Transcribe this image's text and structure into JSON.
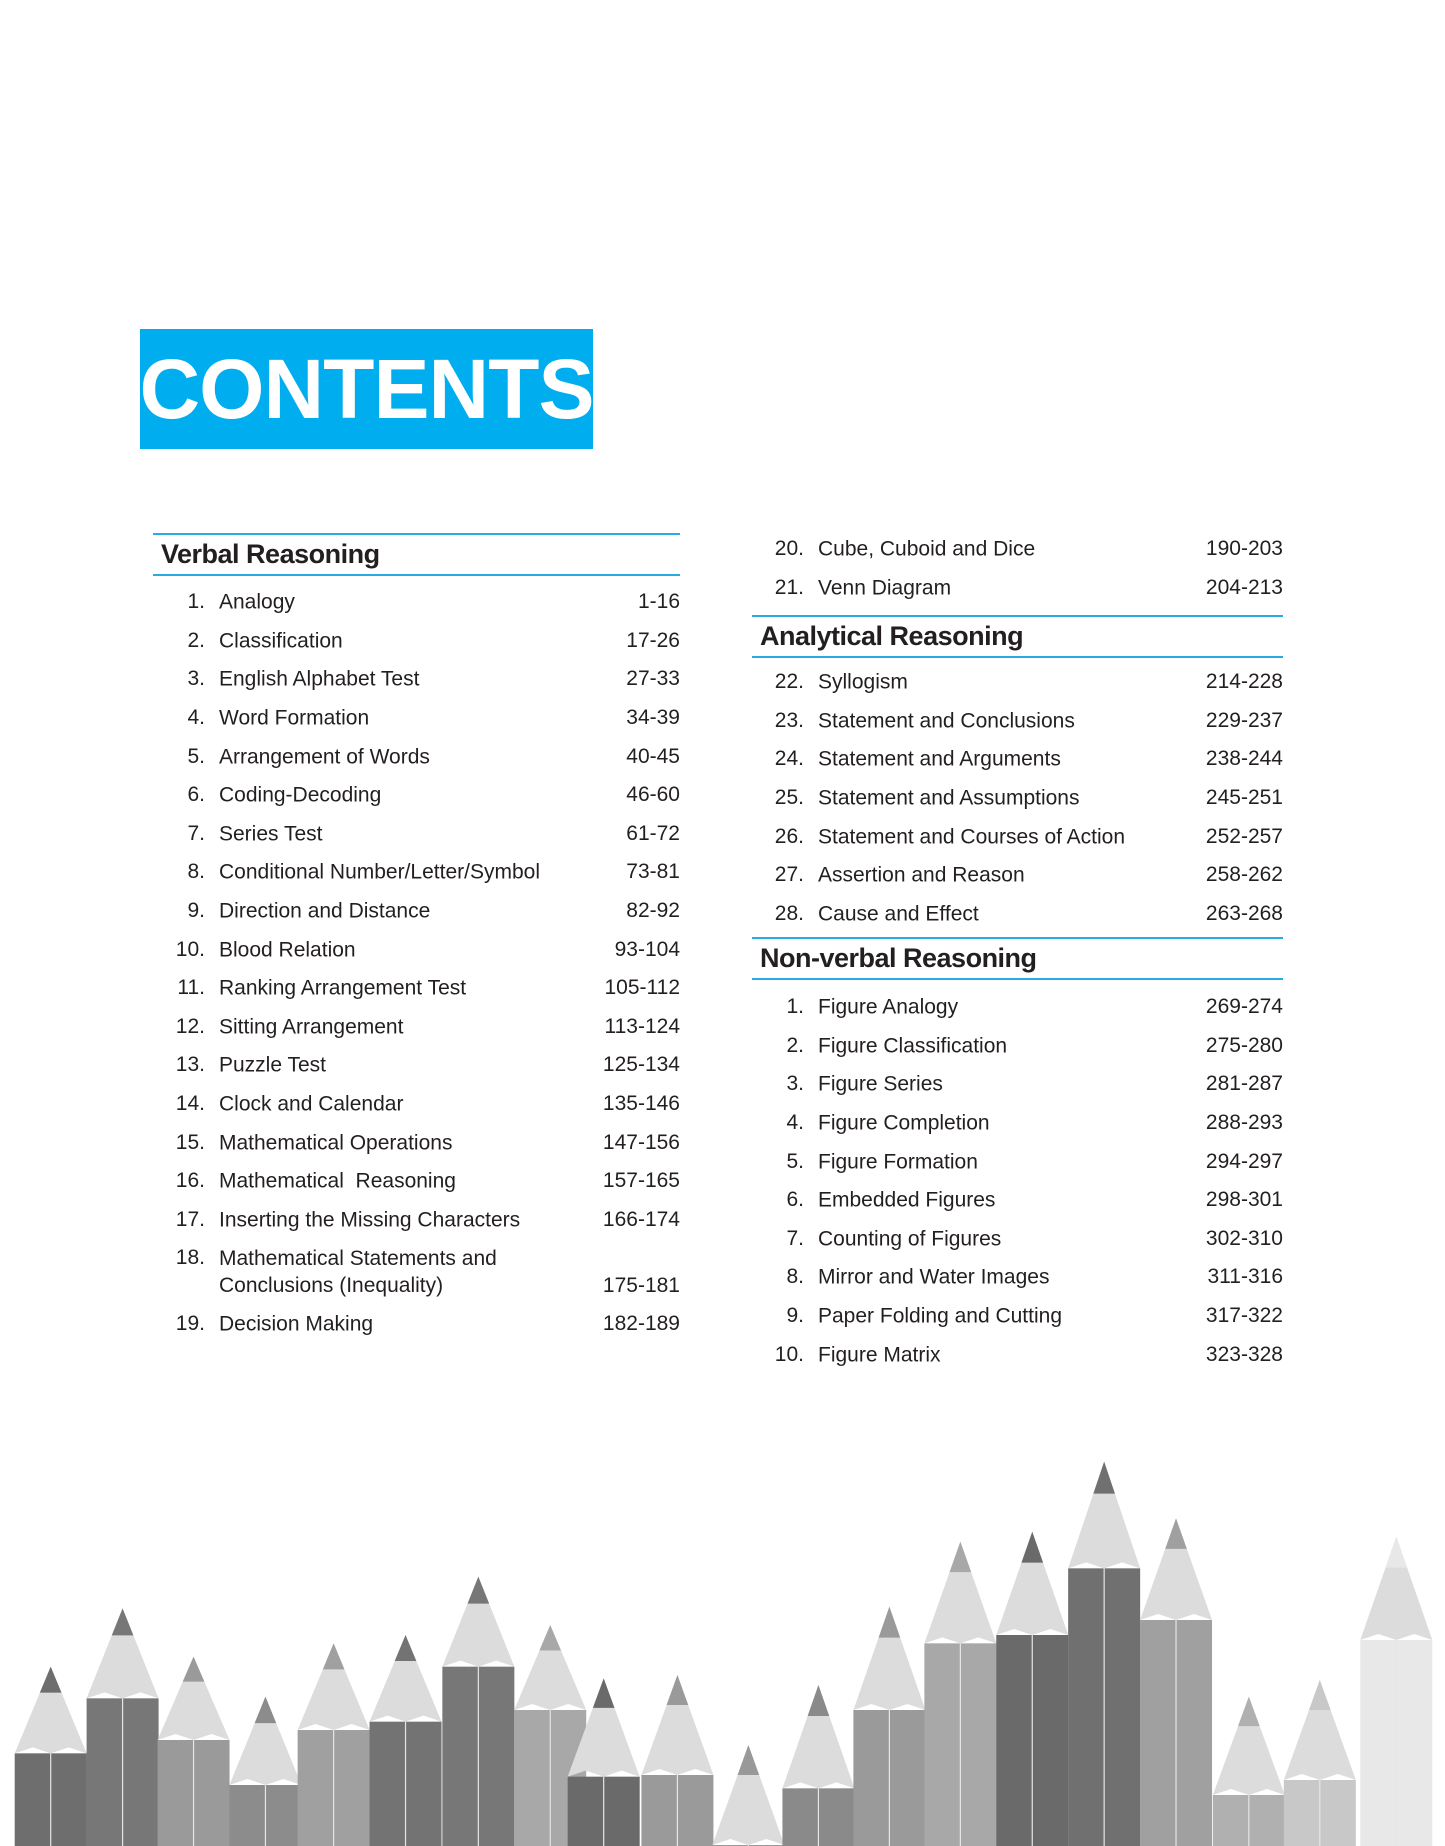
{
  "title": "CONTENTS",
  "accent_color": "#00aeef",
  "rule_color": "#29abe2",
  "left_column": {
    "section": "Verbal Reasoning",
    "items": [
      {
        "num": "1.",
        "label": "Analogy",
        "pages": "1-16"
      },
      {
        "num": "2.",
        "label": "Classification",
        "pages": "17-26"
      },
      {
        "num": "3.",
        "label": "English Alphabet Test",
        "pages": "27-33"
      },
      {
        "num": "4.",
        "label": "Word Formation",
        "pages": "34-39"
      },
      {
        "num": "5.",
        "label": "Arrangement of Words",
        "pages": "40-45"
      },
      {
        "num": "6.",
        "label": "Coding-Decoding",
        "pages": "46-60"
      },
      {
        "num": "7.",
        "label": "Series Test",
        "pages": "61-72"
      },
      {
        "num": "8.",
        "label": "Conditional Number/Letter/Symbol",
        "pages": "73-81"
      },
      {
        "num": "9.",
        "label": "Direction and Distance",
        "pages": "82-92"
      },
      {
        "num": "10.",
        "label": "Blood Relation",
        "pages": "93-104"
      },
      {
        "num": "11.",
        "label": "Ranking Arrangement Test",
        "pages": "105-112"
      },
      {
        "num": "12.",
        "label": "Sitting Arrangement",
        "pages": "113-124"
      },
      {
        "num": "13.",
        "label": "Puzzle Test",
        "pages": "125-134"
      },
      {
        "num": "14.",
        "label": "Clock and Calendar",
        "pages": "135-146"
      },
      {
        "num": "15.",
        "label": "Mathematical Operations",
        "pages": "147-156"
      },
      {
        "num": "16.",
        "label": "Mathematical  Reasoning",
        "pages": "157-165"
      },
      {
        "num": "17.",
        "label": "Inserting the Missing Characters",
        "pages": "166-174"
      },
      {
        "num": "18.",
        "label": "Mathematical Statements and\nConclusions (Inequality)",
        "pages": "175-181"
      },
      {
        "num": "19.",
        "label": "Decision Making",
        "pages": "182-189"
      }
    ]
  },
  "right_column": {
    "continued_items": [
      {
        "num": "20.",
        "label": "Cube, Cuboid and Dice",
        "pages": "190-203"
      },
      {
        "num": "21.",
        "label": "Venn Diagram",
        "pages": "204-213"
      }
    ],
    "analytical": {
      "section": "Analytical Reasoning",
      "items": [
        {
          "num": "22.",
          "label": "Syllogism",
          "pages": "214-228"
        },
        {
          "num": "23.",
          "label": "Statement and Conclusions",
          "pages": "229-237"
        },
        {
          "num": "24.",
          "label": "Statement and Arguments",
          "pages": "238-244"
        },
        {
          "num": "25.",
          "label": "Statement and Assumptions",
          "pages": "245-251"
        },
        {
          "num": "26.",
          "label": "Statement and Courses of Action",
          "pages": "252-257"
        },
        {
          "num": "27.",
          "label": "Assertion and Reason",
          "pages": "258-262"
        },
        {
          "num": "28.",
          "label": "Cause and Effect",
          "pages": "263-268"
        }
      ]
    },
    "nonverbal": {
      "section": "Non-verbal Reasoning",
      "items": [
        {
          "num": "1.",
          "label": "Figure Analogy",
          "pages": "269-274"
        },
        {
          "num": "2.",
          "label": "Figure Classification",
          "pages": "275-280"
        },
        {
          "num": "3.",
          "label": "Figure Series",
          "pages": "281-287"
        },
        {
          "num": "4.",
          "label": "Figure Completion",
          "pages": "288-293"
        },
        {
          "num": "5.",
          "label": "Figure Formation",
          "pages": "294-297"
        },
        {
          "num": "6.",
          "label": "Embedded Figures",
          "pages": "298-301"
        },
        {
          "num": "7.",
          "label": "Counting of Figures",
          "pages": "302-310"
        },
        {
          "num": "8.",
          "label": "Mirror and Water Images",
          "pages": "311-316"
        },
        {
          "num": "9.",
          "label": "Paper Folding and Cutting",
          "pages": "317-322"
        },
        {
          "num": "10.",
          "label": "Figure Matrix",
          "pages": "323-328"
        }
      ]
    }
  },
  "decoration": "grayscale-pencils-image"
}
